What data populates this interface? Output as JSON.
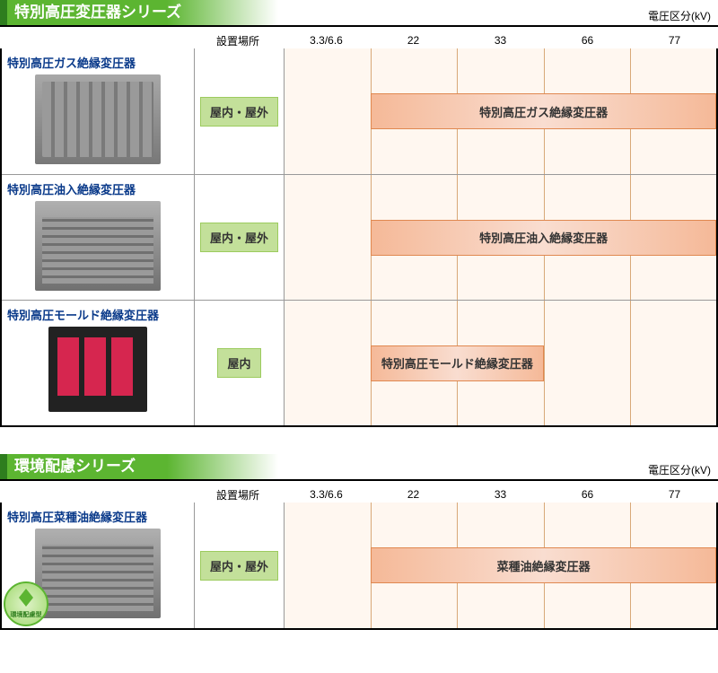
{
  "unit_label": "電圧区分(kV)",
  "location_header": "設置場所",
  "voltage_columns": [
    "3.3/6.6",
    "22",
    "33",
    "66",
    "77"
  ],
  "voltage_positions_pct": [
    10,
    30,
    50,
    70,
    90
  ],
  "gridline_positions_pct": [
    20,
    40,
    60,
    80
  ],
  "colors": {
    "section_green": "#5cb531",
    "section_dark_green": "#2e7d1e",
    "location_badge_bg": "#c3e09a",
    "location_badge_border": "#9ccb5e",
    "voltage_cell_bg": "#fff7f0",
    "gridline": "#d8a878",
    "range_bar_light": "#f9ddd0",
    "range_bar_dark": "#f5b998",
    "range_bar_border": "#e08850",
    "product_name": "#0a3a8a"
  },
  "sections": [
    {
      "title": "特別高圧変圧器シリーズ",
      "rows": [
        {
          "name": "特別高圧ガス絶縁変圧器",
          "img": "img-gas",
          "location": "屋内・屋外",
          "range_label": "特別高圧ガス絶縁変圧器",
          "range_start_pct": 20,
          "range_end_pct": 100
        },
        {
          "name": "特別高圧油入絶縁変圧器",
          "img": "img-oil",
          "location": "屋内・屋外",
          "range_label": "特別高圧油入絶縁変圧器",
          "range_start_pct": 20,
          "range_end_pct": 100
        },
        {
          "name": "特別高圧モールド絶縁変圧器",
          "img": "img-mold",
          "location": "屋内",
          "range_label": "特別高圧モールド絶縁変圧器",
          "range_start_pct": 20,
          "range_end_pct": 60
        }
      ]
    },
    {
      "title": "環境配慮シリーズ",
      "rows": [
        {
          "name": "特別高圧菜種油絶縁変圧器",
          "img": "img-rape",
          "eco_badge": "環境配慮型",
          "location": "屋内・屋外",
          "range_label": "菜種油絶縁変圧器",
          "range_start_pct": 20,
          "range_end_pct": 100
        }
      ]
    }
  ]
}
